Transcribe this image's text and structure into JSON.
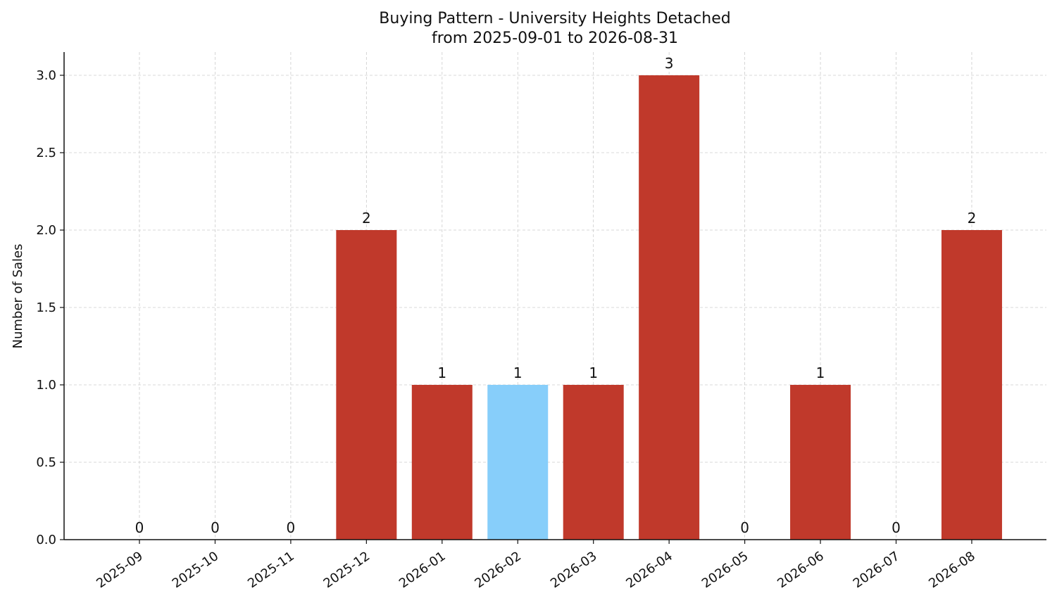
{
  "chart_data": {
    "type": "bar",
    "title": "Buying Pattern - University Heights Detached",
    "subtitle": "from 2025-09-01 to 2026-08-31",
    "xlabel": "",
    "ylabel": "Number of Sales",
    "categories": [
      "2025-09",
      "2025-10",
      "2025-11",
      "2025-12",
      "2026-01",
      "2026-02",
      "2026-03",
      "2026-04",
      "2026-05",
      "2026-06",
      "2026-07",
      "2026-08"
    ],
    "values": [
      0,
      0,
      0,
      2,
      1,
      1,
      1,
      3,
      0,
      1,
      0,
      2
    ],
    "data_labels": [
      "0",
      "0",
      "0",
      "2",
      "1",
      "1",
      "1",
      "3",
      "0",
      "1",
      "0",
      "2"
    ],
    "bar_colors": [
      "#c0392b",
      "#c0392b",
      "#c0392b",
      "#c0392b",
      "#c0392b",
      "#87cefa",
      "#c0392b",
      "#c0392b",
      "#c0392b",
      "#c0392b",
      "#c0392b",
      "#c0392b"
    ],
    "y_ticks": [
      "0.0",
      "0.5",
      "1.0",
      "1.5",
      "2.0",
      "2.5",
      "3.0"
    ],
    "y_tick_values": [
      0,
      0.5,
      1.0,
      1.5,
      2.0,
      2.5,
      3.0
    ],
    "ylim": [
      0,
      3.15
    ],
    "grid": true,
    "grid_color": "#cccccc",
    "axis_color": "#111111"
  }
}
